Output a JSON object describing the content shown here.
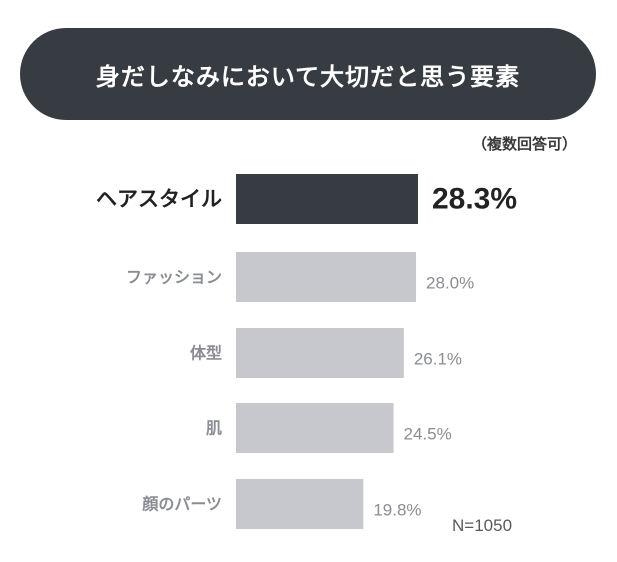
{
  "header": {
    "title": "身だしなみにおいて大切だと思う要素",
    "note": "（複数回答可）"
  },
  "footer": {
    "sample": "N=1050"
  },
  "colors": {
    "highlight": "#373b42",
    "bar": "#c6c8cd",
    "highlight_text": "#222222",
    "muted_text": "#8a8d93"
  },
  "chart_data": {
    "type": "bar",
    "orientation": "horizontal",
    "categories": [
      "ヘアスタイル",
      "ファッション",
      "体型",
      "肌",
      "顔のパーツ"
    ],
    "values": [
      28.3,
      28.0,
      26.1,
      24.5,
      19.8
    ],
    "value_labels": [
      "28.3%",
      "28.0%",
      "26.1%",
      "24.5%",
      "19.8%"
    ],
    "highlight_index": 0,
    "unit": "%",
    "grid": false,
    "legend": "none"
  }
}
